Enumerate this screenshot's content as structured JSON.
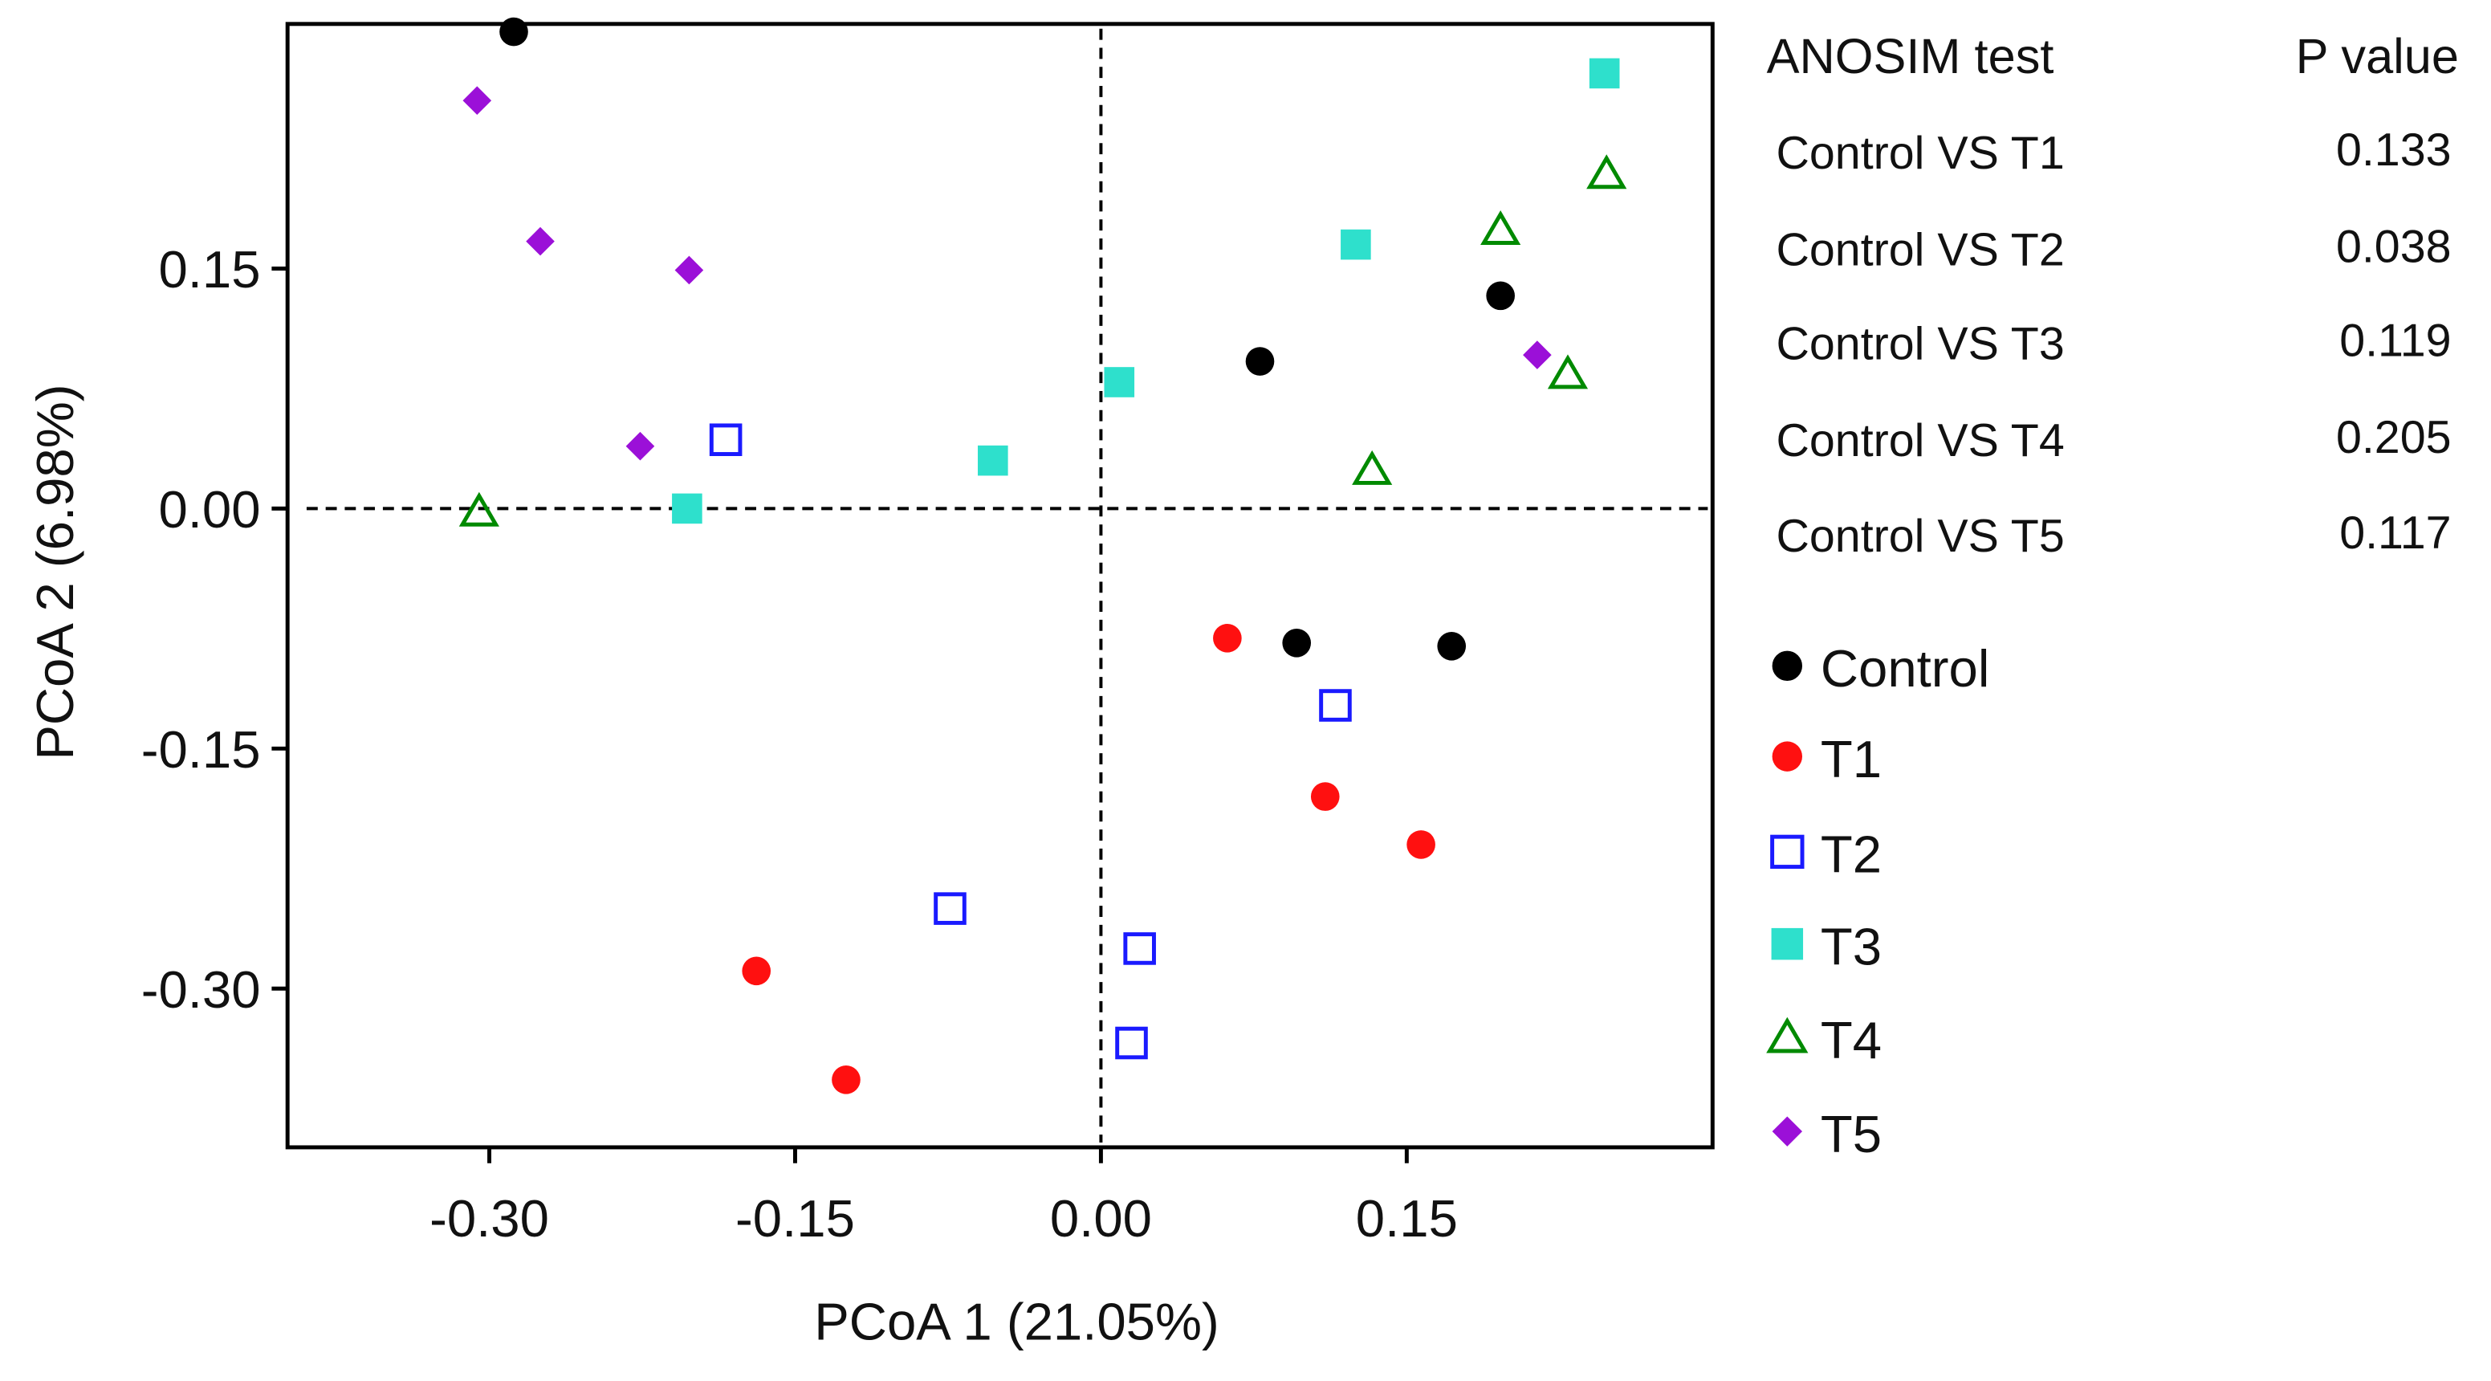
{
  "chart_data": {
    "type": "scatter",
    "title": "",
    "xlabel": "PCoA 1 (21.05%)",
    "ylabel": "PCoA 2 (6.98%)",
    "xlim": [
      -0.399,
      0.3
    ],
    "ylim": [
      -0.399,
      0.303
    ],
    "xticks": [
      "-0.30",
      "-0.15",
      "0.00",
      "0.15"
    ],
    "xtick_values": [
      -0.3,
      -0.15,
      0.0,
      0.15
    ],
    "yticks": [
      "0.15",
      "0.00",
      "-0.15",
      "-0.30"
    ],
    "ytick_values": [
      0.15,
      0.0,
      -0.15,
      -0.3
    ],
    "grid": false,
    "reference_lines": {
      "x": 0,
      "y": 0,
      "style": "dashed"
    },
    "legend_position": "right",
    "series": [
      {
        "name": "Control",
        "marker": "circle-filled",
        "color": "#000000",
        "points": [
          [
            -0.288,
            0.298
          ],
          [
            0.078,
            0.092
          ],
          [
            0.196,
            0.133
          ],
          [
            0.096,
            -0.084
          ],
          [
            0.172,
            -0.086
          ]
        ]
      },
      {
        "name": "T1",
        "marker": "circle-filled",
        "color": "#ff1010",
        "points": [
          [
            0.062,
            -0.081
          ],
          [
            0.11,
            -0.18
          ],
          [
            0.157,
            -0.21
          ],
          [
            -0.169,
            -0.289
          ],
          [
            -0.125,
            -0.357
          ]
        ]
      },
      {
        "name": "T2",
        "marker": "square-open",
        "color": "#1a1aff",
        "points": [
          [
            -0.184,
            0.043
          ],
          [
            0.115,
            -0.123
          ],
          [
            -0.074,
            -0.25
          ],
          [
            0.019,
            -0.275
          ],
          [
            0.015,
            -0.334
          ]
        ]
      },
      {
        "name": "T3",
        "marker": "square-filled",
        "color": "#2ee0cc",
        "points": [
          [
            0.247,
            0.272
          ],
          [
            0.125,
            0.165
          ],
          [
            0.009,
            0.079
          ],
          [
            -0.053,
            0.03
          ],
          [
            -0.203,
            0.0
          ]
        ]
      },
      {
        "name": "T4",
        "marker": "triangle-open",
        "color": "#008a00",
        "points": [
          [
            0.248,
            0.209
          ],
          [
            0.196,
            0.174
          ],
          [
            0.229,
            0.084
          ],
          [
            0.133,
            0.024
          ],
          [
            -0.305,
            -0.002
          ]
        ]
      },
      {
        "name": "T5",
        "marker": "diamond-filled",
        "color": "#9b10d8",
        "points": [
          [
            -0.306,
            0.255
          ],
          [
            -0.275,
            0.167
          ],
          [
            -0.202,
            0.149
          ],
          [
            -0.226,
            0.039
          ],
          [
            0.214,
            0.096
          ]
        ]
      }
    ],
    "anosim_table": {
      "header": [
        "ANOSIM test",
        "P value"
      ],
      "rows": [
        [
          "Control VS T1",
          "0.133"
        ],
        [
          "Control VS T2",
          "0.038"
        ],
        [
          "Control VS T3",
          "0.119"
        ],
        [
          "Control VS T4",
          "0.205"
        ],
        [
          "Control VS T5",
          "0.117"
        ]
      ]
    }
  }
}
